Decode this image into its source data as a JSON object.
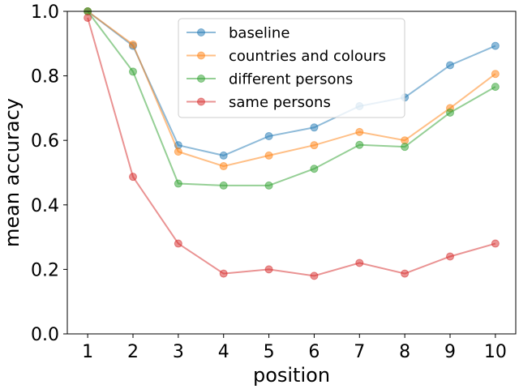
{
  "chart_data": {
    "type": "line",
    "xlabel": "position",
    "ylabel": "mean accuracy",
    "x": [
      1,
      2,
      3,
      4,
      5,
      6,
      7,
      8,
      9,
      10
    ],
    "xticks": [
      "1",
      "2",
      "3",
      "4",
      "5",
      "6",
      "7",
      "8",
      "9",
      "10"
    ],
    "yticks": [
      "0.0",
      "0.2",
      "0.4",
      "0.6",
      "0.8",
      "1.0"
    ],
    "xlim": [
      0.55,
      10.45
    ],
    "ylim": [
      0.0,
      1.0
    ],
    "grid": false,
    "legend_position": "upper-center",
    "series": [
      {
        "name": "baseline",
        "color": "#1f77b4",
        "values": [
          1.0,
          0.893,
          0.585,
          0.553,
          0.613,
          0.64,
          0.706,
          0.733,
          0.833,
          0.893
        ]
      },
      {
        "name": "countries and colours",
        "color": "#ff7f0e",
        "values": [
          1.0,
          0.897,
          0.565,
          0.52,
          0.553,
          0.585,
          0.626,
          0.6,
          0.7,
          0.806
        ]
      },
      {
        "name": "different persons",
        "color": "#2ca02c",
        "values": [
          1.0,
          0.813,
          0.466,
          0.46,
          0.46,
          0.512,
          0.586,
          0.58,
          0.686,
          0.766
        ]
      },
      {
        "name": "same persons",
        "color": "#d62728",
        "values": [
          0.98,
          0.487,
          0.28,
          0.187,
          0.2,
          0.18,
          0.22,
          0.187,
          0.24,
          0.28
        ]
      }
    ]
  }
}
